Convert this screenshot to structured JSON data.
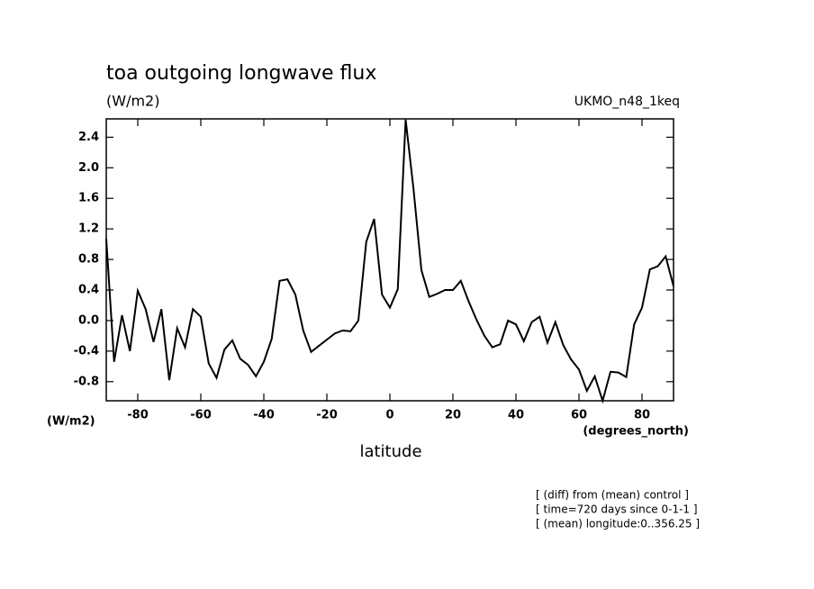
{
  "chart_data": {
    "type": "line",
    "title": "toa outgoing longwave flux",
    "subtitle": "(W/m2)",
    "dataset": "UKMO_n48_1keq",
    "ylabel": "(W/m2)",
    "xunits": "(degrees_north)",
    "xlabel": "latitude",
    "notes": [
      "[ (diff) from (mean) control ]",
      "[ time=720 days since 0-1-1 ]",
      "[ (mean) longitude:0..356.25 ]"
    ],
    "x": [
      -90,
      -87.5,
      -85,
      -82.5,
      -80,
      -77.5,
      -75,
      -72.5,
      -70,
      -67.5,
      -65,
      -62.5,
      -60,
      -57.5,
      -55,
      -52.5,
      -50,
      -47.5,
      -45,
      -42.5,
      -40,
      -37.5,
      -35,
      -32.5,
      -30,
      -27.5,
      -25,
      -22.5,
      -20,
      -17.5,
      -15,
      -12.5,
      -10,
      -7.5,
      -5,
      -2.5,
      0,
      2.5,
      5,
      7.5,
      10,
      12.5,
      15,
      17.5,
      20,
      22.5,
      25,
      27.5,
      30,
      32.5,
      35,
      37.5,
      40,
      42.5,
      45,
      47.5,
      50,
      52.5,
      55,
      57.5,
      60,
      62.5,
      65,
      67.5,
      70,
      72.5,
      75,
      77.5,
      80,
      82.5,
      85,
      87.5,
      90
    ],
    "series": [
      {
        "name": "flux",
        "color": "#000000",
        "values": [
          1.07,
          -0.54,
          0.07,
          -0.4,
          0.39,
          0.15,
          -0.28,
          0.15,
          -0.78,
          -0.1,
          -0.35,
          0.15,
          0.05,
          -0.56,
          -0.75,
          -0.38,
          -0.26,
          -0.5,
          -0.58,
          -0.73,
          -0.54,
          -0.24,
          0.52,
          0.54,
          0.34,
          -0.13,
          -0.41,
          -0.33,
          -0.25,
          -0.17,
          -0.13,
          -0.14,
          0.0,
          1.03,
          1.33,
          0.34,
          0.17,
          0.41,
          2.63,
          1.72,
          0.66,
          0.31,
          0.35,
          0.4,
          0.4,
          0.52,
          0.25,
          0.01,
          -0.2,
          -0.35,
          -0.31,
          0.0,
          -0.05,
          -0.27,
          -0.02,
          0.05,
          -0.29,
          -0.02,
          -0.32,
          -0.51,
          -0.64,
          -0.92,
          -0.73,
          -1.05,
          -0.67,
          -0.68,
          -0.74,
          -0.05,
          0.17,
          0.67,
          0.71,
          0.84,
          0.45
        ]
      }
    ],
    "xlim": [
      -90,
      90
    ],
    "xticks": [
      -80,
      -60,
      -40,
      -20,
      0,
      20,
      40,
      60,
      80
    ],
    "ylim": [
      -1.05,
      2.64
    ],
    "yticks": [
      {
        "value": 2.4,
        "label": "2.4"
      },
      {
        "value": 2,
        "label": "2.0"
      },
      {
        "value": 1.6,
        "label": "1.6"
      },
      {
        "value": 1.2,
        "label": "1.2"
      },
      {
        "value": 0.8,
        "label": "0.8"
      },
      {
        "value": 0.4,
        "label": "0.4"
      },
      {
        "value": 0,
        "label": "0.0"
      },
      {
        "value": -0.4,
        "label": "-0.4"
      },
      {
        "value": -0.8,
        "label": "-0.8"
      }
    ],
    "grid": false
  }
}
